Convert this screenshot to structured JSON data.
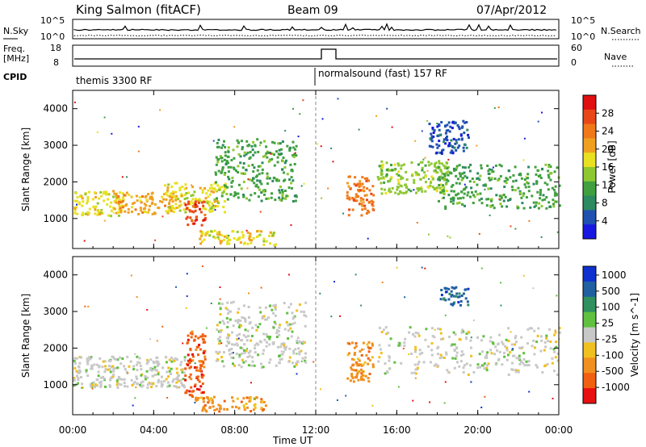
{
  "header": {
    "station": "King Salmon (fitACF)",
    "beam": "Beam 09",
    "date": "07/Apr/2012"
  },
  "noise_panel": {
    "left_label": "N.Sky",
    "right_label": "N.Search",
    "left_ticks": [
      "10^5",
      "10^0"
    ],
    "right_ticks": [
      "10^5",
      "10^0"
    ]
  },
  "freq_panel": {
    "left_label_1": "Freq.",
    "left_label_2": "[MHz]",
    "right_label": "Nave",
    "left_ticks": [
      "18",
      "8"
    ],
    "right_ticks": [
      "60",
      "0"
    ]
  },
  "cpid": {
    "label": "CPID",
    "segments": [
      {
        "label": "themis 3300 RF",
        "start_hour": 0,
        "end_hour": 12
      },
      {
        "label": "normalsound (fast) 157 RF",
        "start_hour": 12,
        "end_hour": 24
      }
    ]
  },
  "chart_data": [
    {
      "type": "heatmap",
      "title": "",
      "xlabel": "Time UT",
      "ylabel": "Slant Range [km]",
      "xlim": [
        0,
        24
      ],
      "ylim": [
        180,
        4500
      ],
      "x_ticks": [
        "00:00",
        "04:00",
        "08:00",
        "12:00",
        "16:00",
        "20:00",
        "00:00"
      ],
      "y_ticks": [
        1000,
        2000,
        3000,
        4000
      ],
      "colorbar": {
        "label": "Power [dB]",
        "ticks": [
          4,
          8,
          12,
          16,
          20,
          24,
          28
        ],
        "colors": [
          "#1818e0",
          "#2050b0",
          "#2e8a60",
          "#40a040",
          "#8ec830",
          "#e8e020",
          "#f0a020",
          "#f07818",
          "#e84818",
          "#e01010"
        ]
      },
      "regions": [
        {
          "t0": 0.0,
          "t1": 2.5,
          "r0": 1100,
          "r1": 1800,
          "value": 18
        },
        {
          "t0": 2.0,
          "t1": 5.0,
          "r0": 1150,
          "r1": 1750,
          "value": 22
        },
        {
          "t0": 4.5,
          "t1": 7.5,
          "r0": 1200,
          "r1": 2000,
          "value": 16
        },
        {
          "t0": 7.0,
          "t1": 11.0,
          "r0": 1500,
          "r1": 3200,
          "value": 10
        },
        {
          "t0": 5.5,
          "t1": 6.5,
          "r0": 800,
          "r1": 1500,
          "value": 26
        },
        {
          "t0": 6.2,
          "t1": 10.0,
          "r0": 300,
          "r1": 700,
          "value": 18
        },
        {
          "t0": 13.5,
          "t1": 14.8,
          "r0": 1100,
          "r1": 2200,
          "value": 24
        },
        {
          "t0": 15.0,
          "t1": 18.5,
          "r0": 1700,
          "r1": 2600,
          "value": 14
        },
        {
          "t0": 18.0,
          "t1": 24.0,
          "r0": 1300,
          "r1": 2500,
          "value": 10
        },
        {
          "t0": 17.5,
          "t1": 19.5,
          "r0": 2800,
          "r1": 3700,
          "value": 6
        }
      ]
    },
    {
      "type": "heatmap",
      "title": "",
      "xlabel": "Time UT",
      "ylabel": "Slant Range [km]",
      "xlim": [
        0,
        24
      ],
      "ylim": [
        180,
        4500
      ],
      "x_ticks": [
        "00:00",
        "04:00",
        "08:00",
        "12:00",
        "16:00",
        "20:00",
        "00:00"
      ],
      "y_ticks": [
        1000,
        2000,
        3000,
        4000
      ],
      "colorbar": {
        "label": "Velocity [m s^-1]",
        "ticks": [
          "1000",
          "500",
          "100",
          "25",
          "-25",
          "-100",
          "-500",
          "-1000"
        ],
        "colors": [
          "#1030d0",
          "#2060a0",
          "#309060",
          "#60c040",
          "#c8c8c8",
          "#f0c020",
          "#f09020",
          "#f06010",
          "#e81010"
        ]
      },
      "regions": [
        {
          "t0": 0.0,
          "t1": 5.5,
          "r0": 950,
          "r1": 1800,
          "value": 0
        },
        {
          "t0": 5.5,
          "t1": 6.5,
          "r0": 700,
          "r1": 2500,
          "value": -500
        },
        {
          "t0": 6.0,
          "t1": 9.5,
          "r0": 300,
          "r1": 700,
          "value": -300
        },
        {
          "t0": 7.0,
          "t1": 11.5,
          "r0": 1500,
          "r1": 3300,
          "value": 0
        },
        {
          "t0": 13.5,
          "t1": 14.8,
          "r0": 1100,
          "r1": 2200,
          "value": -100
        },
        {
          "t0": 15.0,
          "t1": 24.0,
          "r0": 1300,
          "r1": 2600,
          "value": 0
        },
        {
          "t0": 18.0,
          "t1": 19.5,
          "r0": 3200,
          "r1": 3700,
          "value": 200
        }
      ]
    }
  ],
  "x_axis_title": "Time UT"
}
